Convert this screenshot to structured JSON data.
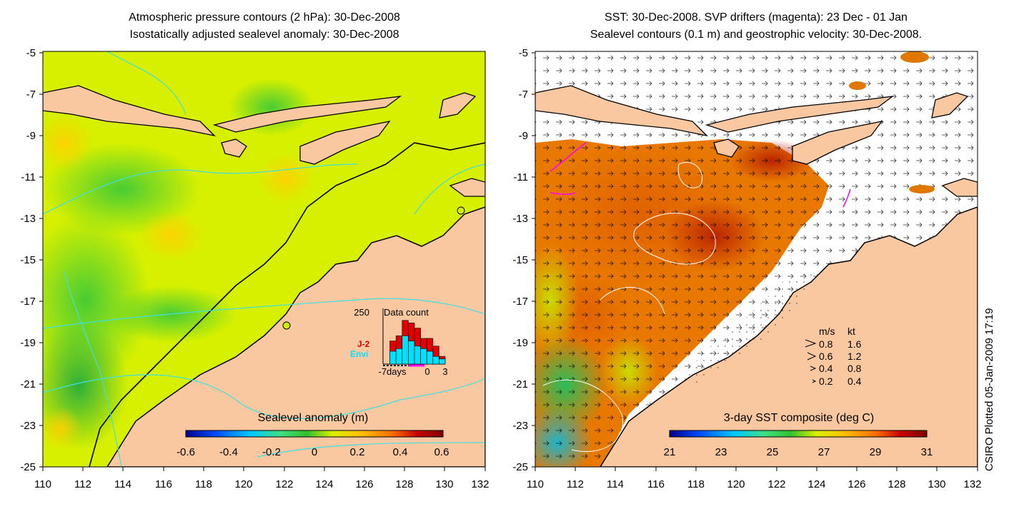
{
  "left_panel": {
    "title_line1": "Atmospheric pressure contours (2 hPa): 30-Dec-2008",
    "title_line2": "Isostatically adjusted sealevel anomaly: 30-Dec-2008",
    "y_ticks": [
      "-5",
      "-7",
      "-9",
      "-11",
      "-13",
      "-15",
      "-17",
      "-19",
      "-21",
      "-23",
      "-25"
    ],
    "x_ticks": [
      "110",
      "112",
      "114",
      "116",
      "118",
      "120",
      "122",
      "124",
      "126",
      "128",
      "130",
      "132"
    ],
    "colorbar_label": "Sealevel anomaly (m)",
    "colorbar_ticks": [
      "-0.6",
      "-0.4",
      "-0.2",
      "0",
      "0.2",
      "0.4",
      "0.6"
    ],
    "colorbar_colors": [
      "#00008f",
      "#0050ff",
      "#00c8ff",
      "#40e080",
      "#30c030",
      "#d8f000",
      "#ffc000",
      "#ff7000",
      "#c80000",
      "#800000"
    ],
    "inset": {
      "count_max": "250",
      "title": "Data count",
      "legend_j2": "J-2",
      "legend_envi": "Envi",
      "x_start": "-7days",
      "x_zero": "0",
      "x_end": "3",
      "j2_color": "#e00000",
      "envi_color": "#00e0ff",
      "chart_data": {
        "type": "bar",
        "categories": [
          "-7",
          "-6",
          "-5",
          "-4",
          "-3",
          "-2",
          "-1",
          "0",
          "1",
          "2"
        ],
        "series": [
          {
            "name": "J-2",
            "values": [
              0.0,
              0.45,
              0.55,
              0.85,
              0.8,
              0.7,
              0.5,
              0.5,
              0.35,
              0.15
            ]
          },
          {
            "name": "Envi",
            "values": [
              0.0,
              0.25,
              0.3,
              0.55,
              0.45,
              0.35,
              0.3,
              0.25,
              0.15,
              0.1
            ]
          }
        ]
      }
    }
  },
  "right_panel": {
    "title_line1": "SST: 30-Dec-2008. SVP drifters (magenta): 23 Dec - 01 Jan",
    "title_line2": "Sealevel contours (0.1 m) and geostrophic velocity: 30-Dec-2008.",
    "y_ticks": [
      "-5",
      "-7",
      "-9",
      "-11",
      "-13",
      "-15",
      "-17",
      "-19",
      "-21",
      "-23",
      "-25"
    ],
    "x_ticks": [
      "110",
      "112",
      "114",
      "116",
      "118",
      "120",
      "122",
      "124",
      "126",
      "128",
      "130",
      "132"
    ],
    "colorbar_label": "3-day SST composite (deg C)",
    "colorbar_ticks": [
      "21",
      "23",
      "25",
      "27",
      "29",
      "31"
    ],
    "colorbar_colors": [
      "#00008f",
      "#0050ff",
      "#00c8ff",
      "#40e080",
      "#30c030",
      "#d8f000",
      "#ffc000",
      "#ff7000",
      "#c80000",
      "#800000"
    ],
    "velocity_legend": {
      "header_ms": "m/s",
      "header_kt": "kt",
      "rows": [
        {
          "ms": "0.8",
          "kt": "1.6"
        },
        {
          "ms": "0.6",
          "kt": "1.2"
        },
        {
          "ms": "0.4",
          "kt": "0.8"
        },
        {
          "ms": "0.2",
          "kt": "0.4"
        }
      ]
    }
  },
  "credit": "CSIRO Plotted 05-Jan-2009 17:19",
  "colors": {
    "land": "#f9c8a0",
    "coast": "#000000",
    "pressure_contour": "#40e0e0",
    "drifter": "#ff00ff",
    "no_data": "#ffffff"
  }
}
